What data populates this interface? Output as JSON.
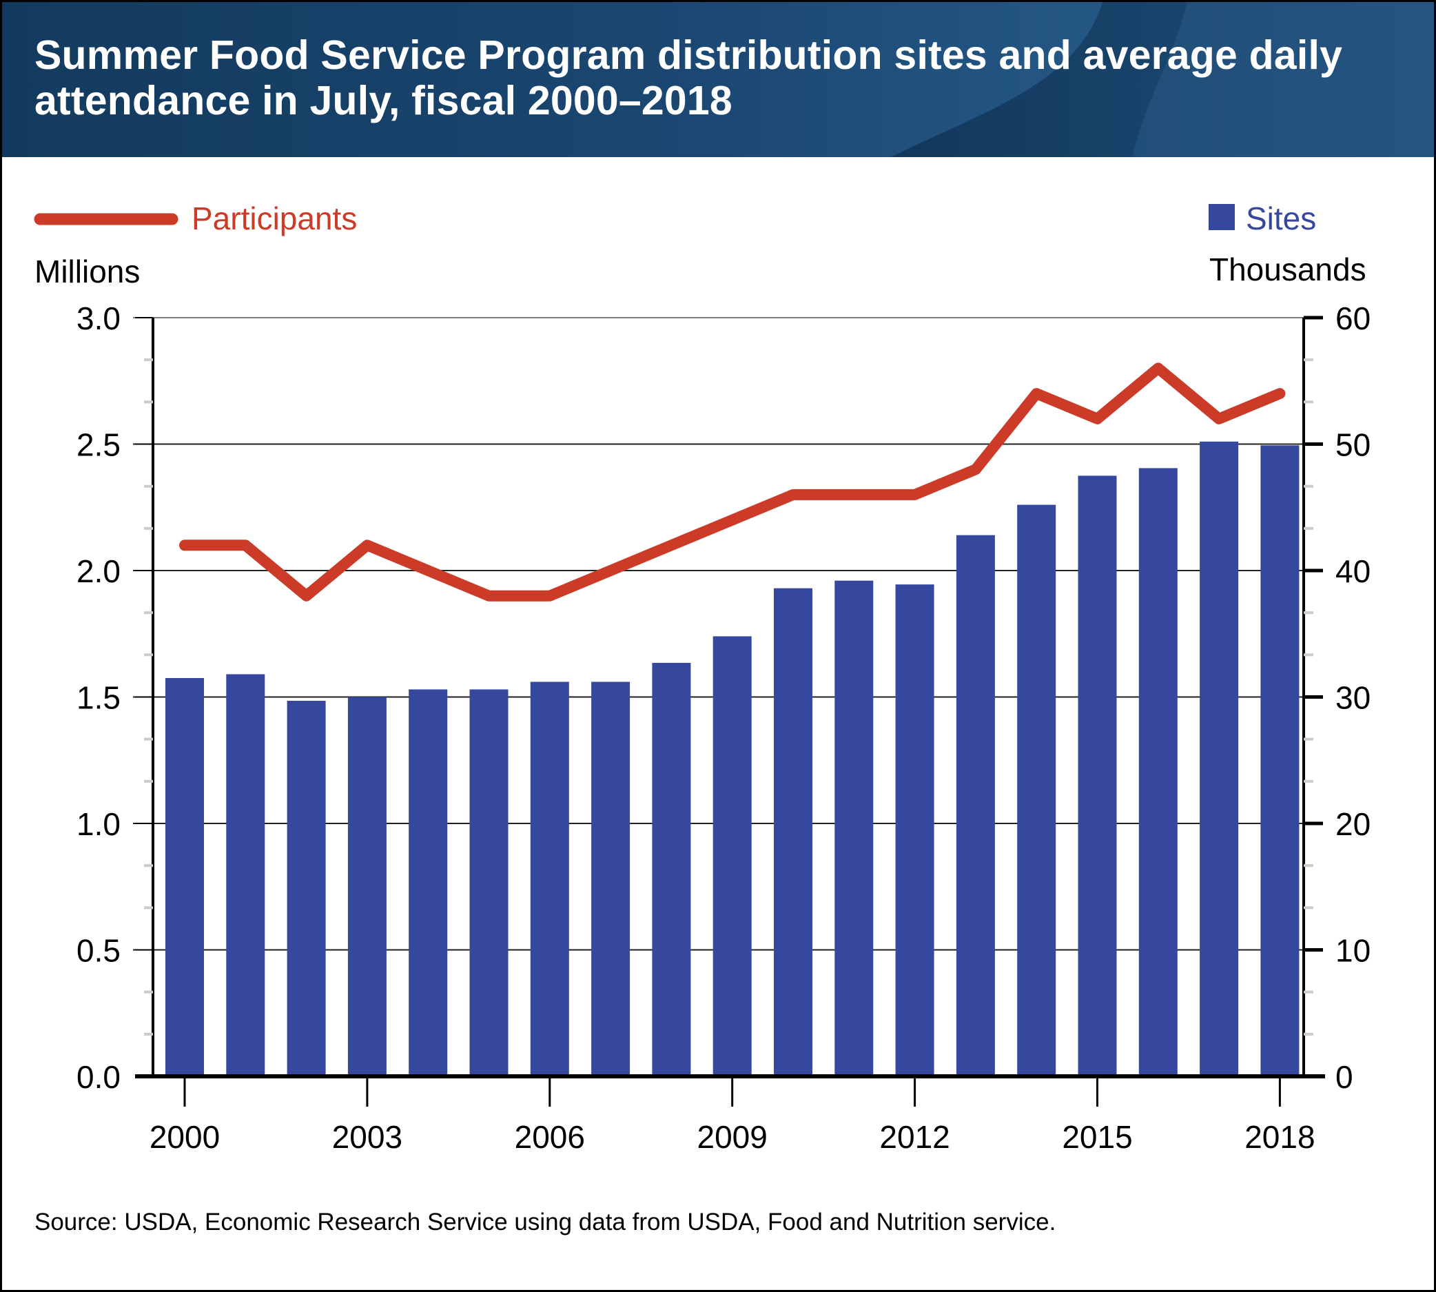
{
  "header": {
    "title_line1": "Summer Food Service Program distribution sites and average daily",
    "title_line2": "attendance in July, fiscal 2000–2018"
  },
  "colors": {
    "header_bg": "#1a4670",
    "participants": "#cc3a28",
    "sites": "#35489e",
    "text": "#000000"
  },
  "chart_data": {
    "type": "bar+line",
    "title": "Summer Food Service Program distribution sites and average daily attendance in July, fiscal 2000–2018",
    "x": [
      2000,
      2001,
      2002,
      2003,
      2004,
      2005,
      2006,
      2007,
      2008,
      2009,
      2010,
      2011,
      2012,
      2013,
      2014,
      2015,
      2016,
      2017,
      2018
    ],
    "x_tick_labels": [
      "2000",
      "2003",
      "2006",
      "2009",
      "2012",
      "2015",
      "2018"
    ],
    "x_tick_values": [
      2000,
      2003,
      2006,
      2009,
      2012,
      2015,
      2018
    ],
    "series": [
      {
        "name": "Participants",
        "type": "line",
        "axis": "left",
        "unit": "Millions",
        "values": [
          2.1,
          2.1,
          1.9,
          2.1,
          2.0,
          1.9,
          1.9,
          2.0,
          2.1,
          2.2,
          2.3,
          2.3,
          2.3,
          2.4,
          2.7,
          2.6,
          2.8,
          2.6,
          2.7
        ]
      },
      {
        "name": "Sites",
        "type": "bar",
        "axis": "right",
        "unit": "Thousands",
        "values": [
          31.5,
          31.8,
          29.7,
          30.0,
          30.6,
          30.6,
          31.2,
          31.2,
          32.7,
          34.8,
          38.6,
          39.2,
          38.9,
          42.8,
          45.2,
          47.5,
          48.1,
          50.2,
          49.9
        ]
      }
    ],
    "left_axis": {
      "label": "Millions",
      "ylim": [
        0,
        3.0
      ],
      "tick_values": [
        0,
        0.5,
        1.0,
        1.5,
        2.0,
        2.5,
        3.0
      ],
      "tick_labels": [
        "0.0",
        "0.5",
        "1.0",
        "1.5",
        "2.0",
        "2.5",
        "3.0"
      ]
    },
    "right_axis": {
      "label": "Thousands",
      "ylim": [
        0,
        60
      ],
      "tick_values": [
        0,
        10,
        20,
        30,
        40,
        50,
        60
      ],
      "tick_labels": [
        "0",
        "10",
        "20",
        "30",
        "40",
        "50",
        "60"
      ]
    },
    "grid": true,
    "legend": [
      {
        "label": "Participants",
        "marker": "line",
        "placement": "top-left"
      },
      {
        "label": "Sites",
        "marker": "square",
        "placement": "top-right"
      }
    ]
  },
  "source": "Source: USDA, Economic Research Service using data from USDA, Food and Nutrition service."
}
